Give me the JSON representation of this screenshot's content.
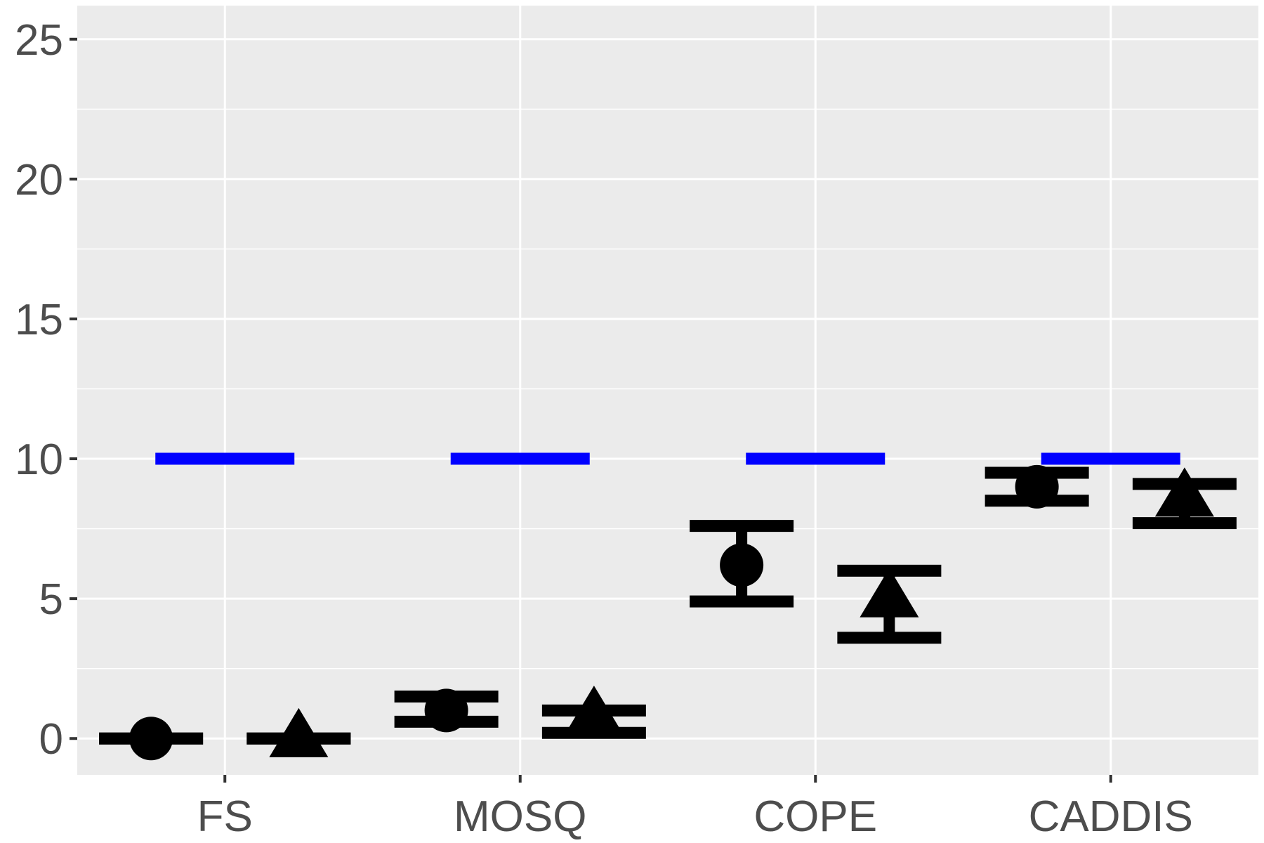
{
  "chart_data": {
    "type": "scatter",
    "categories": [
      "FS",
      "MOSQ",
      "COPE",
      "CADDIS"
    ],
    "ylim": [
      -1.3,
      26.2
    ],
    "y_ticks": [
      0,
      5,
      10,
      15,
      20,
      25
    ],
    "y_tick_labels": [
      "0",
      "5",
      "10",
      "15",
      "20",
      "25"
    ],
    "grid": true,
    "legend": "none",
    "reference": {
      "color": "#0000ff",
      "values": [
        10,
        10,
        10,
        10
      ]
    },
    "series": [
      {
        "marker": "circle",
        "color": "#000000",
        "values": [
          0,
          1.0,
          6.2,
          9.0
        ],
        "lower": [
          0,
          0.6,
          4.9,
          8.5
        ],
        "upper": [
          0,
          1.5,
          7.6,
          9.5
        ]
      },
      {
        "marker": "triangle",
        "color": "#000000",
        "values": [
          0,
          0.8,
          5.0,
          8.6
        ],
        "lower": [
          0,
          0.2,
          3.6,
          7.7
        ],
        "upper": [
          0,
          1.0,
          6.0,
          9.1
        ]
      }
    ],
    "xlabel": "",
    "ylabel": "",
    "title": ""
  }
}
